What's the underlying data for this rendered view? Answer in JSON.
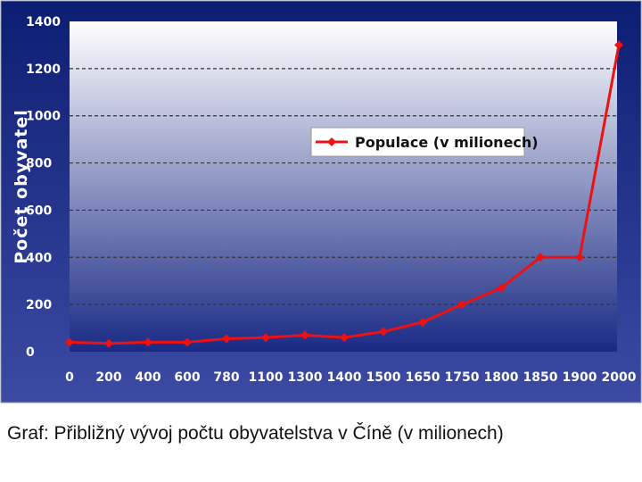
{
  "caption": "Graf: Přibližný vývoj počtu obyvatelstva v Číně (v milionech)",
  "colors": {
    "frame_top": "#0c1e73",
    "frame_bottom": "#3c4aa4",
    "plot_top": "#ffffff",
    "plot_bottom": "#1a2a85",
    "line": "#ee1111",
    "tick_text": "#ffffff",
    "grid": "#333333"
  },
  "chart_data": {
    "type": "line",
    "ylabel": "Počet obyvatel",
    "ylim": [
      0,
      1400
    ],
    "y_ticks": [
      0,
      200,
      400,
      600,
      800,
      1000,
      1200,
      1400
    ],
    "grid": "horizontal dashed",
    "legend_position": "upper-center",
    "categories": [
      "0",
      "200",
      "400",
      "600",
      "780",
      "1100",
      "1300",
      "1400",
      "1500",
      "1650",
      "1750",
      "1800",
      "1850",
      "1900",
      "2000"
    ],
    "series": [
      {
        "name": "Populace (v milionech)",
        "values": [
          40,
          35,
          40,
          40,
          55,
          60,
          70,
          60,
          85,
          125,
          200,
          270,
          400,
          400,
          1300
        ]
      }
    ]
  }
}
